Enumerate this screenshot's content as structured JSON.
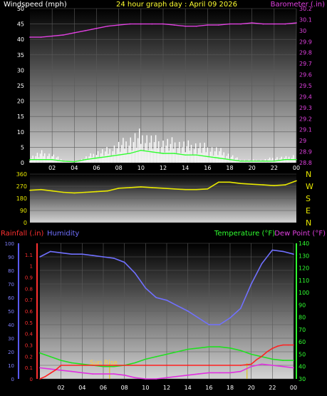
{
  "header": {
    "left_label": "Windspeed (mph)",
    "title": "24 hour graph day : April 09 2026",
    "right_label": "Barometer (.in)"
  },
  "chart_data": [
    {
      "id": "wind-baro",
      "type": "line",
      "x_ticks": [
        "02",
        "04",
        "06",
        "08",
        "10",
        "12",
        "14",
        "16",
        "18",
        "20",
        "22",
        "00"
      ],
      "left_axis": {
        "label": "Windspeed (mph)",
        "range": [
          0,
          50
        ],
        "ticks": [
          "0",
          "5",
          "10",
          "15",
          "20",
          "25",
          "30",
          "35",
          "40",
          "45",
          "50"
        ]
      },
      "right_axis": {
        "label": "Barometer (.in)",
        "range": [
          28.8,
          30.2
        ],
        "ticks": [
          "28.8",
          "28.9",
          "29",
          "29.1",
          "29.2",
          "29.3",
          "29.4",
          "29.5",
          "29.6",
          "29.7",
          "29.8",
          "29.9",
          "30",
          "30.1",
          "30.2"
        ]
      },
      "series": [
        {
          "axis": "right",
          "color": "#e040e0",
          "x": [
            0,
            1,
            2,
            3,
            4,
            5,
            6,
            7,
            8,
            9,
            10,
            11,
            12,
            13,
            14,
            15,
            16,
            17,
            18,
            19,
            20,
            21,
            22,
            23,
            24
          ],
          "values": [
            29.94,
            29.94,
            29.95,
            29.96,
            29.98,
            30.0,
            30.02,
            30.04,
            30.05,
            30.06,
            30.06,
            30.06,
            30.06,
            30.05,
            30.04,
            30.04,
            30.05,
            30.05,
            30.06,
            30.06,
            30.07,
            30.06,
            30.06,
            30.06,
            30.07
          ]
        },
        {
          "axis": "left",
          "color": "#ffffff",
          "x": [
            0,
            1,
            2,
            3,
            4,
            5,
            6,
            7,
            8,
            9,
            10,
            11,
            12,
            13,
            14,
            15,
            16,
            17,
            18,
            19,
            20,
            21,
            22,
            23,
            24
          ],
          "values": [
            2,
            4,
            3,
            1,
            0,
            2,
            4,
            5,
            7,
            9,
            11,
            9,
            8,
            8,
            7,
            7,
            6,
            5,
            3,
            1,
            1,
            1,
            2,
            2,
            3
          ]
        },
        {
          "axis": "left",
          "color": "#30ff30",
          "x": [
            0,
            1,
            2,
            3,
            4,
            5,
            6,
            7,
            8,
            9,
            10,
            11,
            12,
            13,
            14,
            15,
            16,
            17,
            18,
            19,
            20,
            21,
            22,
            23,
            24
          ],
          "values": [
            1,
            1,
            1,
            0.5,
            0.3,
            1,
            1.5,
            2,
            2.5,
            3,
            4,
            3.5,
            3,
            3,
            2.5,
            2.5,
            2,
            1.5,
            1,
            0.5,
            0.5,
            0.5,
            0.5,
            1,
            1
          ]
        }
      ]
    },
    {
      "id": "wind-direction",
      "type": "line",
      "left_axis": {
        "range": [
          0,
          360
        ],
        "ticks": [
          "0",
          "90",
          "180",
          "270",
          "360"
        ]
      },
      "right_labels": [
        "N",
        "W",
        "S",
        "E",
        "N"
      ],
      "series": [
        {
          "color": "#e8e800",
          "x": [
            0,
            1,
            2,
            3,
            4,
            5,
            6,
            7,
            8,
            9,
            10,
            11,
            12,
            13,
            14,
            15,
            16,
            17,
            18,
            19,
            20,
            21,
            22,
            23,
            24
          ],
          "values": [
            240,
            245,
            235,
            225,
            220,
            225,
            230,
            235,
            255,
            260,
            265,
            260,
            255,
            250,
            245,
            245,
            250,
            300,
            300,
            290,
            285,
            280,
            275,
            280,
            310
          ]
        }
      ]
    },
    {
      "id": "rain-humidity-temp-dew",
      "type": "line",
      "labels": {
        "rainfall": "Rainfall (.in)",
        "humidity": "Humidity",
        "temperature": "Temperature (°F)",
        "dewpoint": "Dew Point (°F)",
        "sunrise": "Sun Rise"
      },
      "x_ticks": [
        "02",
        "04",
        "06",
        "08",
        "10",
        "12",
        "14",
        "16",
        "18",
        "20",
        "22",
        "00"
      ],
      "humidity_axis": {
        "range": [
          0,
          100
        ],
        "ticks": [
          "0",
          "10",
          "20",
          "30",
          "40",
          "50",
          "60",
          "70",
          "80",
          "90",
          "100"
        ]
      },
      "rain_axis": {
        "range": [
          0,
          1.2
        ],
        "ticks": [
          "0",
          "0.1",
          "0.2",
          "0.3",
          "0.4",
          "0.5",
          "0.6",
          "0.7",
          "0.8",
          "0.9",
          "1",
          "1.1"
        ]
      },
      "temp_axis": {
        "range": [
          30,
          140
        ],
        "ticks": [
          "30",
          "40",
          "50",
          "60",
          "70",
          "80",
          "90",
          "100",
          "110",
          "120",
          "130",
          "140"
        ]
      },
      "sunrise_hour": 6.6,
      "sunset_hour": 19.6,
      "series": [
        {
          "name": "Humidity",
          "axis": "humidity",
          "color": "#7070ff",
          "x": [
            0,
            1,
            2,
            3,
            4,
            5,
            6,
            7,
            8,
            9,
            10,
            11,
            12,
            13,
            14,
            15,
            16,
            17,
            18,
            19,
            20,
            21,
            22,
            23,
            24
          ],
          "values": [
            90,
            94,
            93,
            92,
            92,
            91,
            90,
            89,
            86,
            78,
            67,
            60,
            58,
            54,
            50,
            45,
            40,
            40,
            45,
            52,
            70,
            85,
            95,
            94,
            92
          ]
        },
        {
          "name": "Temperature",
          "axis": "temp",
          "color": "#20e020",
          "x": [
            0,
            1,
            2,
            3,
            4,
            5,
            6,
            7,
            8,
            9,
            10,
            11,
            12,
            13,
            14,
            15,
            16,
            17,
            18,
            19,
            20,
            21,
            22,
            23,
            24
          ],
          "values": [
            51,
            48,
            45,
            43,
            42,
            41,
            40,
            40,
            41,
            43,
            46,
            48,
            50,
            52,
            54,
            55,
            56,
            56,
            55,
            53,
            50,
            48,
            46,
            45,
            45
          ]
        },
        {
          "name": "Dew Point",
          "axis": "temp",
          "color": "#e030e0",
          "x": [
            0,
            1,
            2,
            3,
            4,
            5,
            6,
            7,
            8,
            9,
            10,
            11,
            12,
            13,
            14,
            15,
            16,
            17,
            18,
            19,
            20,
            21,
            22,
            23,
            24
          ],
          "values": [
            39,
            38,
            37,
            36,
            35,
            34,
            34,
            34,
            33,
            31,
            30,
            30,
            31,
            32,
            33,
            34,
            35,
            35,
            35,
            36,
            40,
            42,
            41,
            40,
            39
          ]
        },
        {
          "name": "Rainfall",
          "axis": "rain",
          "color": "#ff2020",
          "x": [
            0,
            0.5,
            1,
            1.5,
            2,
            4,
            6,
            8,
            10,
            12,
            14,
            16,
            18,
            19,
            20,
            20.5,
            21,
            21.5,
            22,
            22.5,
            23,
            23.5,
            24
          ],
          "values": [
            0,
            0.02,
            0.05,
            0.08,
            0.12,
            0.12,
            0.12,
            0.12,
            0.12,
            0.12,
            0.12,
            0.12,
            0.12,
            0.12,
            0.13,
            0.17,
            0.2,
            0.24,
            0.27,
            0.29,
            0.3,
            0.3,
            0.3
          ]
        }
      ]
    }
  ]
}
